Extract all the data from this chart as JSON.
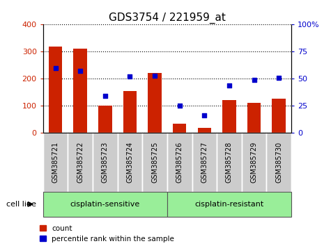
{
  "title": "GDS3754 / 221959_at",
  "samples": [
    "GSM385721",
    "GSM385722",
    "GSM385723",
    "GSM385724",
    "GSM385725",
    "GSM385726",
    "GSM385727",
    "GSM385728",
    "GSM385729",
    "GSM385730"
  ],
  "counts": [
    318,
    312,
    100,
    155,
    222,
    35,
    18,
    120,
    110,
    125
  ],
  "percentile_ranks": [
    60,
    57,
    34,
    52,
    53,
    25,
    16,
    44,
    49,
    51
  ],
  "bar_color": "#cc2200",
  "dot_color": "#0000cc",
  "left_ylim": [
    0,
    400
  ],
  "right_ylim": [
    0,
    100
  ],
  "left_yticks": [
    0,
    100,
    200,
    300,
    400
  ],
  "right_yticks": [
    0,
    25,
    50,
    75,
    100
  ],
  "right_yticklabels": [
    "0",
    "25",
    "50",
    "75",
    "100%"
  ],
  "group1_label": "cisplatin-sensitive",
  "group2_label": "cisplatin-resistant",
  "group1_count": 5,
  "group2_count": 5,
  "cell_line_label": "cell line",
  "legend_count_label": "count",
  "legend_pct_label": "percentile rank within the sample",
  "group_bg_color": "#99ee99",
  "tick_label_bg": "#cccccc",
  "title_fontsize": 11,
  "axis_fontsize": 8,
  "bar_width": 0.55
}
